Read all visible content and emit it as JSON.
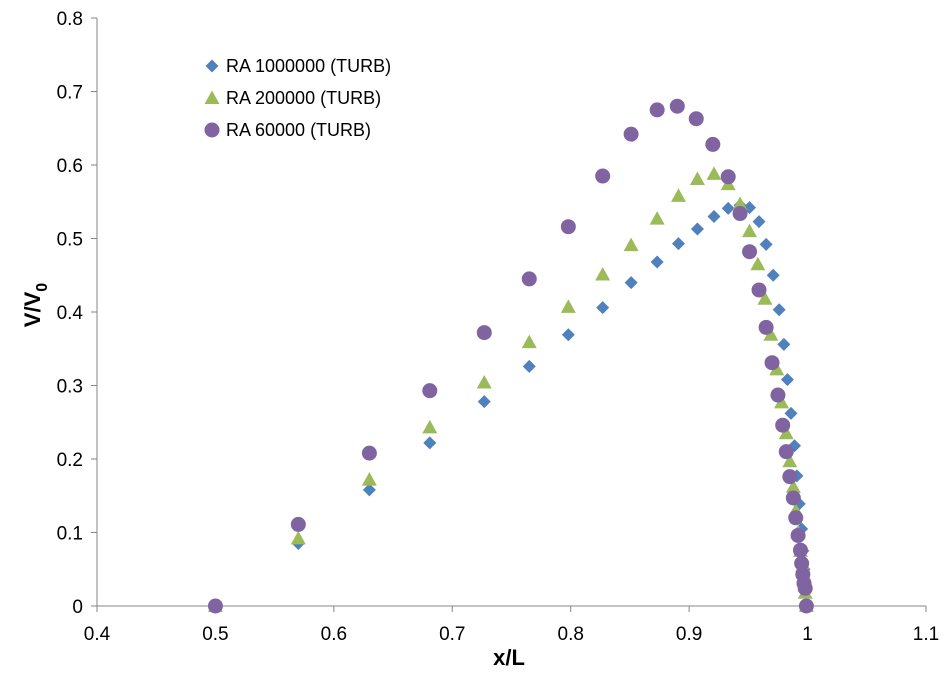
{
  "chart_data": {
    "type": "scatter",
    "xlabel": "x/L",
    "ylabel_main": "V/V",
    "ylabel_sub": "0",
    "xlim": [
      0.4,
      1.1
    ],
    "ylim": [
      0,
      0.8
    ],
    "x_ticks": [
      "0.4",
      "0.5",
      "0.6",
      "0.7",
      "0.8",
      "0.9",
      "1",
      "1.1"
    ],
    "y_ticks": [
      "0",
      "0.1",
      "0.2",
      "0.3",
      "0.4",
      "0.5",
      "0.6",
      "0.7",
      "0.8"
    ],
    "grid": false,
    "legend_position": "top-left",
    "series": [
      {
        "name": "RA 1000000 (TURB)",
        "marker": "diamond",
        "color": "#4F81BD",
        "points": [
          [
            0.5,
            0.0
          ],
          [
            0.57,
            0.085
          ],
          [
            0.63,
            0.158
          ],
          [
            0.681,
            0.222
          ],
          [
            0.727,
            0.278
          ],
          [
            0.765,
            0.326
          ],
          [
            0.798,
            0.369
          ],
          [
            0.827,
            0.406
          ],
          [
            0.851,
            0.44
          ],
          [
            0.873,
            0.468
          ],
          [
            0.891,
            0.493
          ],
          [
            0.907,
            0.513
          ],
          [
            0.921,
            0.53
          ],
          [
            0.933,
            0.541
          ],
          [
            0.943,
            0.545
          ],
          [
            0.951,
            0.542
          ],
          [
            0.959,
            0.523
          ],
          [
            0.965,
            0.492
          ],
          [
            0.971,
            0.45
          ],
          [
            0.976,
            0.403
          ],
          [
            0.98,
            0.356
          ],
          [
            0.983,
            0.308
          ],
          [
            0.986,
            0.262
          ],
          [
            0.989,
            0.218
          ],
          [
            0.991,
            0.177
          ],
          [
            0.993,
            0.139
          ],
          [
            0.995,
            0.105
          ],
          [
            0.996,
            0.075
          ],
          [
            0.997,
            0.05
          ],
          [
            0.998,
            0.03
          ],
          [
            0.999,
            0.0
          ]
        ]
      },
      {
        "name": "RA 200000 (TURB)",
        "marker": "triangle",
        "color": "#9BBB59",
        "points": [
          [
            0.5,
            0.0
          ],
          [
            0.57,
            0.092
          ],
          [
            0.63,
            0.172
          ],
          [
            0.681,
            0.243
          ],
          [
            0.727,
            0.304
          ],
          [
            0.765,
            0.359
          ],
          [
            0.798,
            0.407
          ],
          [
            0.827,
            0.451
          ],
          [
            0.851,
            0.491
          ],
          [
            0.873,
            0.527
          ],
          [
            0.891,
            0.558
          ],
          [
            0.907,
            0.581
          ],
          [
            0.921,
            0.588
          ],
          [
            0.933,
            0.574
          ],
          [
            0.943,
            0.547
          ],
          [
            0.951,
            0.51
          ],
          [
            0.958,
            0.465
          ],
          [
            0.964,
            0.418
          ],
          [
            0.969,
            0.369
          ],
          [
            0.974,
            0.322
          ],
          [
            0.978,
            0.277
          ],
          [
            0.982,
            0.235
          ],
          [
            0.985,
            0.197
          ],
          [
            0.988,
            0.162
          ],
          [
            0.99,
            0.13
          ],
          [
            0.992,
            0.1
          ],
          [
            0.994,
            0.075
          ],
          [
            0.996,
            0.055
          ],
          [
            0.997,
            0.035
          ],
          [
            0.998,
            0.018
          ],
          [
            0.999,
            0.0
          ]
        ]
      },
      {
        "name": "RA 60000 (TURB)",
        "marker": "circle",
        "color": "#8064A2",
        "points": [
          [
            0.5,
            0.0
          ],
          [
            0.57,
            0.111
          ],
          [
            0.63,
            0.208
          ],
          [
            0.681,
            0.293
          ],
          [
            0.727,
            0.372
          ],
          [
            0.765,
            0.445
          ],
          [
            0.798,
            0.516
          ],
          [
            0.827,
            0.585
          ],
          [
            0.851,
            0.642
          ],
          [
            0.873,
            0.675
          ],
          [
            0.89,
            0.68
          ],
          [
            0.906,
            0.663
          ],
          [
            0.92,
            0.628
          ],
          [
            0.933,
            0.584
          ],
          [
            0.943,
            0.534
          ],
          [
            0.951,
            0.482
          ],
          [
            0.959,
            0.43
          ],
          [
            0.965,
            0.379
          ],
          [
            0.97,
            0.331
          ],
          [
            0.975,
            0.287
          ],
          [
            0.979,
            0.246
          ],
          [
            0.982,
            0.21
          ],
          [
            0.985,
            0.176
          ],
          [
            0.988,
            0.147
          ],
          [
            0.99,
            0.12
          ],
          [
            0.992,
            0.096
          ],
          [
            0.994,
            0.076
          ],
          [
            0.995,
            0.058
          ],
          [
            0.996,
            0.043
          ],
          [
            0.997,
            0.031
          ],
          [
            0.998,
            0.024
          ],
          [
            0.999,
            0.0
          ]
        ]
      }
    ]
  }
}
